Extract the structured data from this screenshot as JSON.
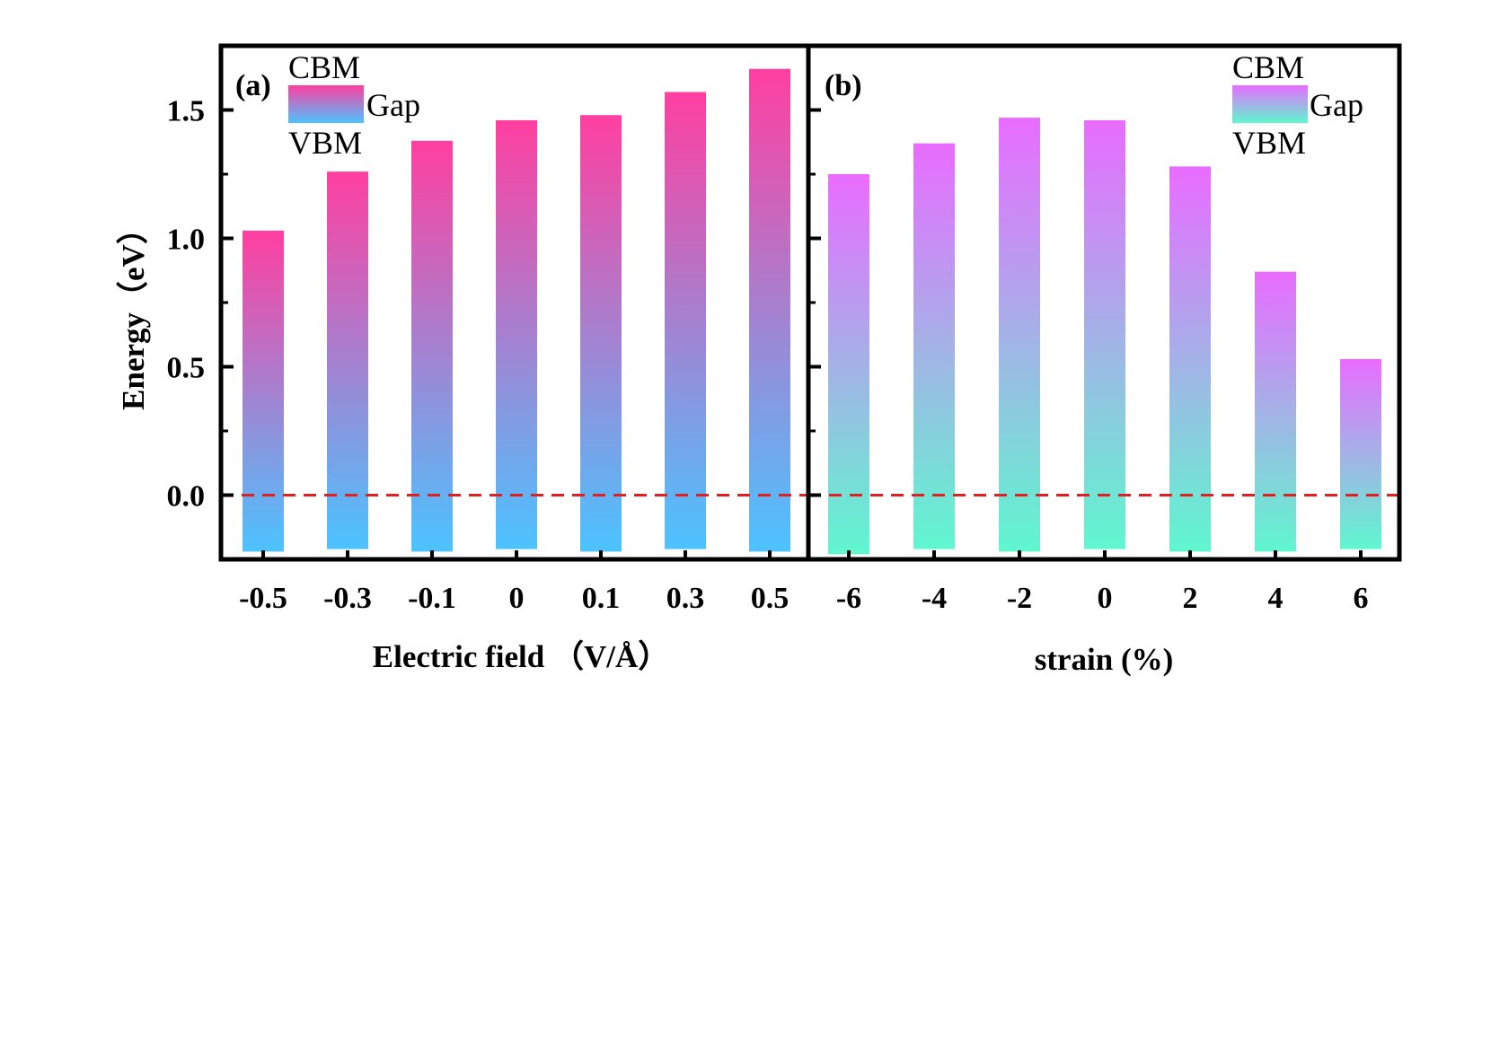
{
  "chart_data": [
    {
      "type": "bar",
      "panel_label": "(a)",
      "xlabel": "Electric field （V/Å）",
      "ylabel": "Energy（eV）",
      "categories": [
        "-0.5",
        "-0.3",
        "-0.1",
        "0",
        "0.1",
        "0.3",
        "0.5"
      ],
      "series": [
        {
          "name": "CBM",
          "values": [
            1.03,
            1.26,
            1.38,
            1.46,
            1.48,
            1.57,
            1.66
          ]
        },
        {
          "name": "VBM",
          "values": [
            -0.22,
            -0.21,
            -0.22,
            -0.21,
            -0.22,
            -0.21,
            -0.22
          ]
        }
      ],
      "legend": {
        "top": "CBM",
        "middle": "Gap",
        "bottom": "VBM",
        "position": "top-left"
      },
      "colors": {
        "cbm": "#ff3fa0",
        "vbm": "#4cc3ff"
      },
      "ylim": [
        -0.25,
        1.75
      ],
      "yticks": [
        "0.0",
        "0.5",
        "1.0",
        "1.5"
      ],
      "reference_line": {
        "y": 0.0,
        "color": "#e02020",
        "style": "dashed"
      }
    },
    {
      "type": "bar",
      "panel_label": "(b)",
      "xlabel": "strain (%)",
      "ylabel": "",
      "categories": [
        "-6",
        "-4",
        "-2",
        "0",
        "2",
        "4",
        "6"
      ],
      "series": [
        {
          "name": "CBM",
          "values": [
            1.25,
            1.37,
            1.47,
            1.46,
            1.28,
            0.87,
            0.53
          ]
        },
        {
          "name": "VBM",
          "values": [
            -0.23,
            -0.21,
            -0.22,
            -0.21,
            -0.22,
            -0.22,
            -0.21
          ]
        }
      ],
      "legend": {
        "top": "CBM",
        "middle": "Gap",
        "bottom": "VBM",
        "position": "top-right"
      },
      "colors": {
        "cbm": "#e96cff",
        "vbm": "#5ff7cf"
      },
      "ylim": [
        -0.25,
        1.75
      ],
      "yticks": [
        "0.0",
        "0.5",
        "1.0",
        "1.5"
      ],
      "reference_line": {
        "y": 0.0,
        "color": "#e02020",
        "style": "dashed"
      }
    }
  ]
}
